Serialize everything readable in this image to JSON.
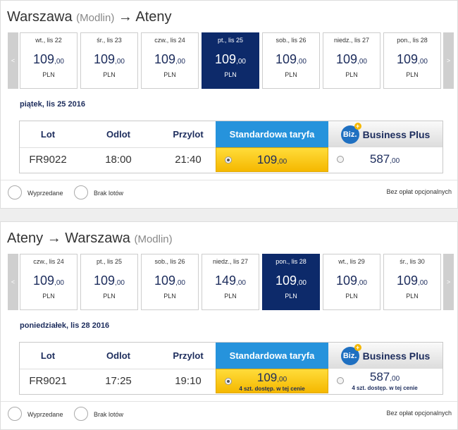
{
  "sections": [
    {
      "origin": {
        "city": "Warszawa",
        "airport": "(Modlin)"
      },
      "arrow": "→",
      "destination": {
        "city": "Ateny"
      },
      "prev": "<",
      "next": ">",
      "selected": 3,
      "dates": [
        {
          "day": "wt., lis 22",
          "price": "109",
          "cents": ",00",
          "currency": "PLN"
        },
        {
          "day": "śr., lis 23",
          "price": "109",
          "cents": ",00",
          "currency": "PLN"
        },
        {
          "day": "czw., lis 24",
          "price": "109",
          "cents": ",00",
          "currency": "PLN"
        },
        {
          "day": "pt., lis 25",
          "price": "109",
          "cents": ",00",
          "currency": "PLN"
        },
        {
          "day": "sob., lis 26",
          "price": "109",
          "cents": ",00",
          "currency": "PLN"
        },
        {
          "day": "niedz., lis 27",
          "price": "109",
          "cents": ",00",
          "currency": "PLN"
        },
        {
          "day": "pon., lis 28",
          "price": "109",
          "cents": ",00",
          "currency": "PLN"
        }
      ],
      "date_label": "piątek, lis 25 2016",
      "headers": {
        "flight": "Lot",
        "departure": "Odlot",
        "arrival": "Przylot",
        "standard": "Standardowa taryfa",
        "biz_logo": "Biz.",
        "business": "Business Plus"
      },
      "flight": {
        "number": "FR9022",
        "departure": "18:00",
        "arrival": "21:40",
        "standard": {
          "price": "109",
          "cents": ",00"
        },
        "business": {
          "price": "587",
          "cents": ",00"
        }
      },
      "footer": {
        "sold_out": "Wyprzedane",
        "no_flights": "Brak lotów",
        "note": "Bez opłat opcjonalnych"
      }
    },
    {
      "origin": {
        "city": "Ateny"
      },
      "arrow": "→",
      "destination": {
        "city": "Warszawa",
        "airport": "(Modlin)"
      },
      "prev": "<",
      "next": ">",
      "selected": 4,
      "dates": [
        {
          "day": "czw., lis 24",
          "price": "109",
          "cents": ",00",
          "currency": "PLN"
        },
        {
          "day": "pt., lis 25",
          "price": "109",
          "cents": ",00",
          "currency": "PLN"
        },
        {
          "day": "sob., lis 26",
          "price": "109",
          "cents": ",00",
          "currency": "PLN"
        },
        {
          "day": "niedz., lis 27",
          "price": "149",
          "cents": ",00",
          "currency": "PLN"
        },
        {
          "day": "pon., lis 28",
          "price": "109",
          "cents": ",00",
          "currency": "PLN"
        },
        {
          "day": "wt., lis 29",
          "price": "109",
          "cents": ",00",
          "currency": "PLN"
        },
        {
          "day": "śr., lis 30",
          "price": "109",
          "cents": ",00",
          "currency": "PLN"
        }
      ],
      "date_label": "poniedziałek, lis 28 2016",
      "headers": {
        "flight": "Lot",
        "departure": "Odlot",
        "arrival": "Przylot",
        "standard": "Standardowa taryfa",
        "biz_logo": "Biz.",
        "business": "Business Plus"
      },
      "flight": {
        "number": "FR9021",
        "departure": "17:25",
        "arrival": "19:10",
        "standard": {
          "price": "109",
          "cents": ",00",
          "note": "4 szt. dostęp. w tej cenie"
        },
        "business": {
          "price": "587",
          "cents": ",00",
          "note": "4 szt. dostęp. w tej cenie"
        }
      },
      "footer": {
        "sold_out": "Wyprzedane",
        "no_flights": "Brak lotów",
        "note": "Bez opłat opcjonalnych"
      }
    }
  ]
}
